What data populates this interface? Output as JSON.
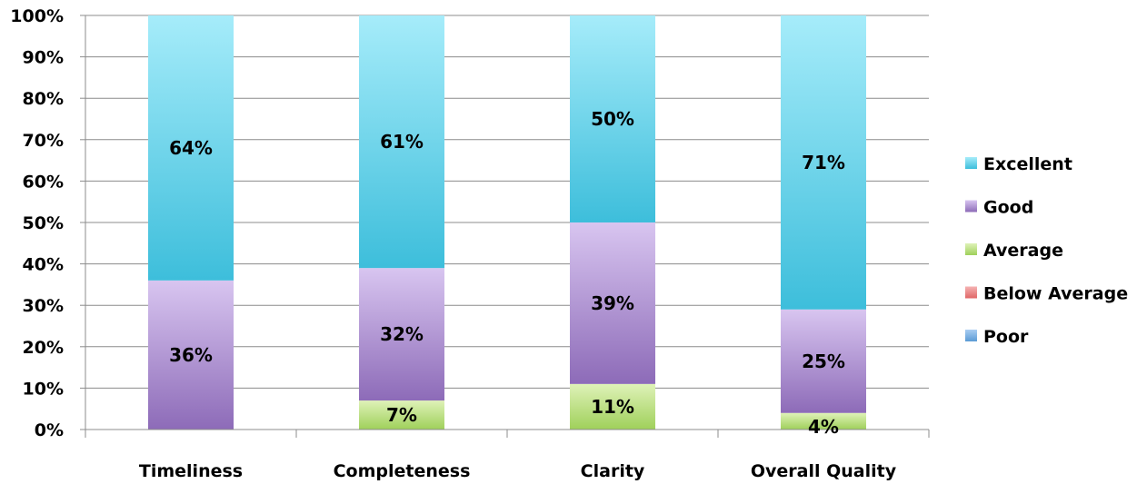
{
  "chart_data": {
    "type": "bar",
    "stacked": true,
    "title": "",
    "xlabel": "",
    "ylabel": "",
    "ylim": [
      0,
      100
    ],
    "y_ticks": [
      "0%",
      "10%",
      "20%",
      "30%",
      "40%",
      "50%",
      "60%",
      "70%",
      "80%",
      "90%",
      "100%"
    ],
    "categories": [
      "Timeliness",
      "Completeness",
      "Clarity",
      "Overall Quality"
    ],
    "series": [
      {
        "name": "Poor",
        "values": [
          0,
          0,
          0,
          0
        ],
        "labels": [
          "",
          "",
          "",
          ""
        ],
        "color": "#5b9bd5",
        "color_light": "#a9cdf2"
      },
      {
        "name": "Below Average",
        "values": [
          0,
          0,
          0,
          0
        ],
        "labels": [
          "",
          "",
          "",
          ""
        ],
        "color": "#e06666",
        "color_light": "#f5b3b3"
      },
      {
        "name": "Average",
        "values": [
          0,
          7,
          11,
          4
        ],
        "labels": [
          "",
          "7%",
          "11%",
          "4%"
        ],
        "color": "#9fd05a",
        "color_light": "#dff2b8"
      },
      {
        "name": "Good",
        "values": [
          36,
          32,
          39,
          25
        ],
        "labels": [
          "36%",
          "32%",
          "39%",
          "25%"
        ],
        "color": "#8d6bb8",
        "color_light": "#d8c5f0"
      },
      {
        "name": "Excellent",
        "values": [
          64,
          61,
          50,
          71
        ],
        "labels": [
          "64%",
          "61%",
          "50%",
          "71%"
        ],
        "color": "#3dbedb",
        "color_light": "#a6ecfa"
      }
    ],
    "legend": {
      "placement": "right",
      "order": [
        "Excellent",
        "Good",
        "Average",
        "Below Average",
        "Poor"
      ]
    },
    "grid": true
  }
}
